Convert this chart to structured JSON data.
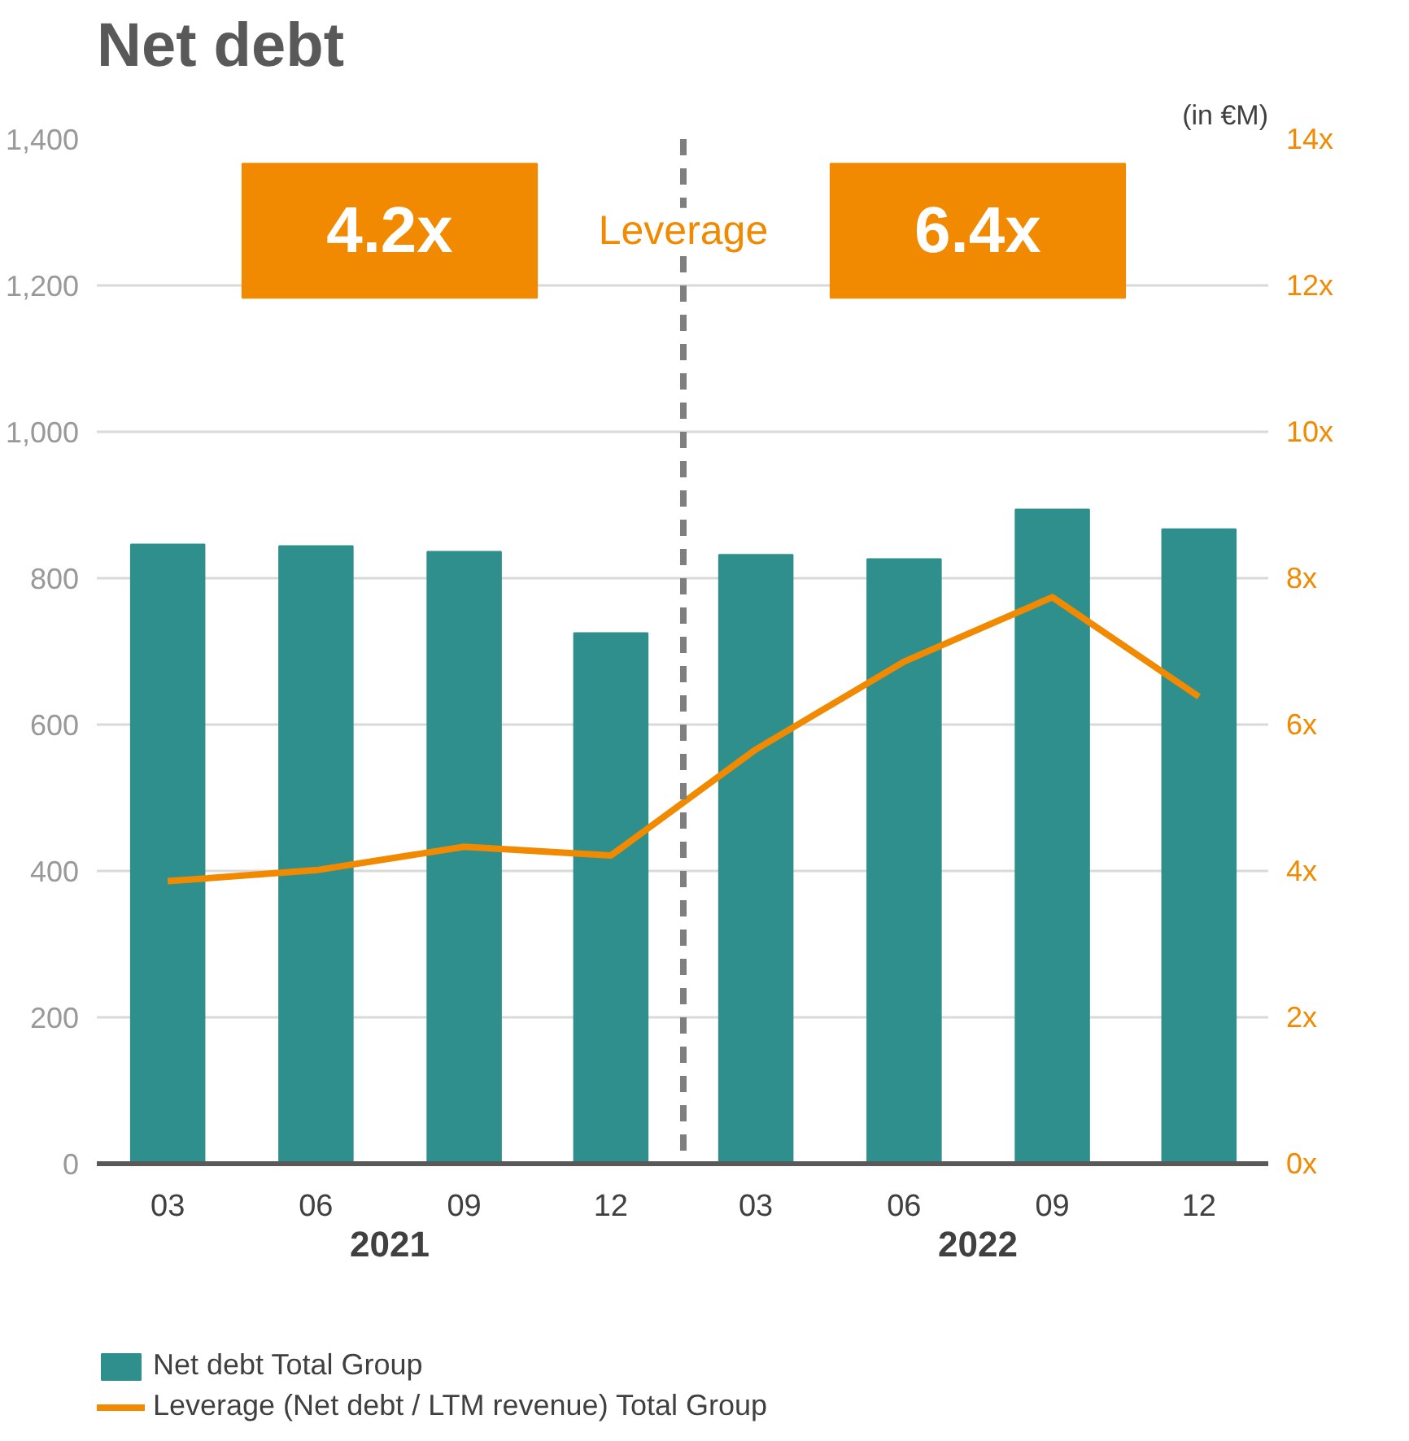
{
  "chart_data": {
    "type": "bar",
    "title": "Net debt",
    "x": [
      "2021-03-01",
      "2021-06-01",
      "2021-09-01",
      "2021-12-01",
      "2022-03-01",
      "2022-06-01",
      "2022-09-01",
      "2022-12-01"
    ],
    "xlim": [
      "2021-01-16",
      "2023-01-13"
    ],
    "xticks": [
      {
        "value": "2021-03-01",
        "label": "03"
      },
      {
        "value": "2021-06-01",
        "label": "06"
      },
      {
        "value": "2021-09-01",
        "label": "09"
      },
      {
        "value": "2021-12-01",
        "label": "12"
      },
      {
        "value": "2022-03-01",
        "label": "03"
      },
      {
        "value": "2022-06-01",
        "label": "06"
      },
      {
        "value": "2022-09-01",
        "label": "09"
      },
      {
        "value": "2022-12-01",
        "label": "12"
      }
    ],
    "series": [
      {
        "name": "Net debt Total Group",
        "color": "#2f8f8c",
        "values": [
          846,
          844,
          836,
          725,
          832,
          826,
          894,
          867
        ]
      },
      {
        "name": "Leverage (Net debt / LTM revenue) Total Group",
        "type": "line",
        "axis": "y2",
        "color": "#f18a00",
        "values": [
          3.86,
          4.01,
          4.33,
          4.21,
          5.66,
          6.86,
          7.74,
          6.38
        ]
      }
    ],
    "ylim": [
      0,
      1400
    ],
    "yticks": [
      0,
      200,
      400,
      600,
      800,
      {
        "value": 1000,
        "label": "1,000"
      },
      {
        "value": 1200,
        "label": "1,200"
      },
      {
        "value": 1400,
        "label": "1,400"
      }
    ],
    "y2lim": [
      0,
      14
    ],
    "y2ticks": [
      {
        "value": 0,
        "label": "0x"
      },
      {
        "value": 2,
        "label": "2x"
      },
      {
        "value": 4,
        "label": "4x"
      },
      {
        "value": 6,
        "label": "6x"
      },
      {
        "value": 8,
        "label": "8x"
      },
      {
        "value": 10,
        "label": "10x"
      },
      {
        "value": 12,
        "label": "12x"
      },
      {
        "value": 14,
        "label": "14x"
      }
    ],
    "ref_lines": [
      {
        "axis": "x",
        "value": "2022-01-15",
        "color": "#7f7f7f",
        "line_style": "dashed"
      }
    ],
    "annotations": [
      "(in €M)",
      "4.2x",
      "Leverage",
      "6.4x",
      "2021",
      "2022"
    ],
    "grid": "y",
    "legend": "bottom"
  }
}
